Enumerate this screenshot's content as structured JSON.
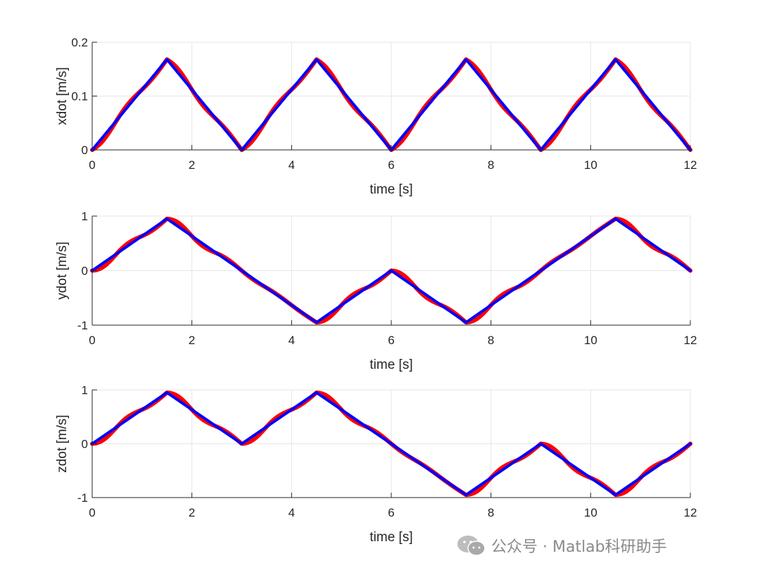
{
  "colors": {
    "reference": "#ff0000",
    "actual": "#0000ff",
    "grid": "#e6e6e6",
    "axis": "#262626"
  },
  "watermark": {
    "text": "公众号 · Matlab科研助手",
    "icon": "wechat-icon"
  },
  "chart_data": [
    {
      "type": "line",
      "xlabel": "time [s]",
      "ylabel": "xdot [m/s]",
      "xlim": [
        0,
        12
      ],
      "ylim": [
        0,
        0.2
      ],
      "xticks": [
        0,
        2,
        4,
        6,
        8,
        10,
        12
      ],
      "yticks": [
        0,
        0.1,
        0.2
      ],
      "ytick_labels": [
        "0",
        "0.1",
        "0.2"
      ],
      "grid": true,
      "series": [
        {
          "color": "#ff0000",
          "style": "wavy",
          "x": [
            0,
            1.5,
            3,
            4.5,
            6,
            7.5,
            9,
            10.5,
            12
          ],
          "y": [
            0,
            0.168,
            0,
            0.168,
            0,
            0.168,
            0,
            0.168,
            0
          ]
        },
        {
          "color": "#0000ff",
          "style": "straight",
          "x": [
            0,
            1.5,
            3,
            4.5,
            6,
            7.5,
            9,
            10.5,
            12
          ],
          "y": [
            0,
            0.168,
            0,
            0.168,
            0,
            0.168,
            0,
            0.168,
            0
          ]
        }
      ]
    },
    {
      "type": "line",
      "xlabel": "time [s]",
      "ylabel": "ydot [m/s]",
      "xlim": [
        0,
        12
      ],
      "ylim": [
        -1,
        1
      ],
      "xticks": [
        0,
        2,
        4,
        6,
        8,
        10,
        12
      ],
      "yticks": [
        -1,
        0,
        1
      ],
      "ytick_labels": [
        "-1",
        "0",
        "1"
      ],
      "grid": true,
      "series": [
        {
          "color": "#ff0000",
          "style": "wavy",
          "x": [
            0,
            1.5,
            4.5,
            6,
            7.5,
            10.5,
            12
          ],
          "y": [
            0,
            0.95,
            -0.95,
            0,
            -0.95,
            0.95,
            0
          ]
        },
        {
          "color": "#0000ff",
          "style": "straight",
          "x": [
            0,
            1.5,
            4.5,
            6,
            7.5,
            10.5,
            12
          ],
          "y": [
            0,
            0.95,
            -0.95,
            0,
            -0.95,
            0.95,
            0
          ]
        }
      ]
    },
    {
      "type": "line",
      "xlabel": "time [s]",
      "ylabel": "zdot [m/s]",
      "xlim": [
        0,
        12
      ],
      "ylim": [
        -1,
        1
      ],
      "xticks": [
        0,
        2,
        4,
        6,
        8,
        10,
        12
      ],
      "yticks": [
        -1,
        0,
        1
      ],
      "ytick_labels": [
        "-1",
        "0",
        "1"
      ],
      "grid": true,
      "series": [
        {
          "color": "#ff0000",
          "style": "wavy",
          "x": [
            0,
            1.5,
            3,
            4.5,
            7.5,
            9,
            10.5,
            12
          ],
          "y": [
            0,
            0.95,
            0,
            0.95,
            -0.95,
            0,
            -0.95,
            0
          ]
        },
        {
          "color": "#0000ff",
          "style": "straight",
          "x": [
            0,
            1.5,
            3,
            4.5,
            7.5,
            9,
            10.5,
            12
          ],
          "y": [
            0,
            0.95,
            0,
            0.95,
            -0.95,
            0,
            -0.95,
            0
          ]
        }
      ]
    }
  ]
}
